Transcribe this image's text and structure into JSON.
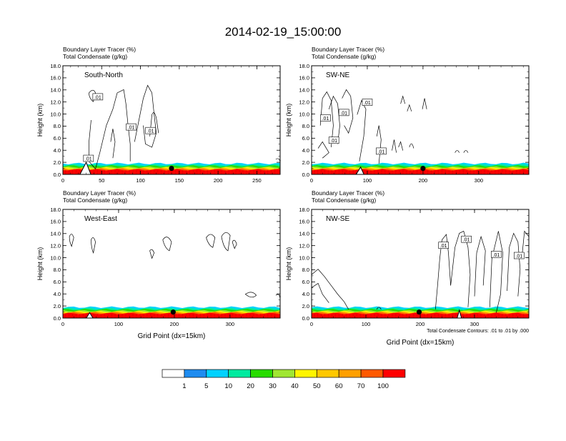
{
  "title": "2014-02-19_15:00:00",
  "chart_data": [
    {
      "type": "contour",
      "panel_label": "South-North",
      "header_lines": [
        "Boundary Layer Tracer   (%)",
        "Total Condensate   (g/kg)"
      ],
      "ylabel": "Height (km)",
      "xlabel": "",
      "ylim": [
        0,
        18
      ],
      "xlim": [
        0,
        280
      ],
      "y_ticks": [
        "0.0",
        "2.0",
        "4.0",
        "6.0",
        "8.0",
        "10.0",
        "12.0",
        "14.0",
        "16.0",
        "18.0"
      ],
      "x_ticks": [
        {
          "v": 0,
          "label": "0"
        },
        {
          "v": 50,
          "label": "50"
        },
        {
          "v": 100,
          "label": "100"
        },
        {
          "v": 150,
          "label": "150"
        },
        {
          "v": 200,
          "label": "200"
        },
        {
          "v": 250,
          "label": "250"
        }
      ],
      "contour_labels": [
        {
          "x": 45,
          "y": 12.8,
          "text": ".01"
        },
        {
          "x": 88,
          "y": 7.8,
          "text": ".01"
        },
        {
          "x": 113,
          "y": 7.2,
          "text": ".01"
        },
        {
          "x": 33,
          "y": 2.6,
          "text": ".01"
        }
      ],
      "marker": {
        "x": 140,
        "y": 1.0
      },
      "mountain": {
        "x_start": 22,
        "x_peak": 30,
        "x_end": 36,
        "peak": 2.0
      }
    },
    {
      "type": "contour",
      "panel_label": "SW-NE",
      "header_lines": [
        "Boundary Layer Tracer   (%)",
        "Total Condensate   (g/kg)"
      ],
      "ylabel": "Height (km)",
      "xlabel": "",
      "ylim": [
        0,
        18
      ],
      "xlim": [
        0,
        390
      ],
      "y_ticks": [
        "0.0",
        "2.0",
        "4.0",
        "6.0",
        "8.0",
        "10.0",
        "12.0",
        "14.0",
        "16.0",
        "18.0"
      ],
      "x_ticks": [
        {
          "v": 0,
          "label": "0"
        },
        {
          "v": 100,
          "label": "100"
        },
        {
          "v": 200,
          "label": "200"
        },
        {
          "v": 300,
          "label": "300"
        }
      ],
      "contour_labels": [
        {
          "x": 58,
          "y": 10.2,
          "text": ".01"
        },
        {
          "x": 25,
          "y": 9.3,
          "text": ".01"
        },
        {
          "x": 100,
          "y": 11.9,
          "text": ".01"
        },
        {
          "x": 40,
          "y": 5.6,
          "text": ".01"
        },
        {
          "x": 125,
          "y": 3.8,
          "text": ".01"
        }
      ],
      "marker": {
        "x": 200,
        "y": 1.0
      },
      "mountain": {
        "x_start": 80,
        "x_peak": 88,
        "x_end": 94,
        "peak": 1.2
      }
    },
    {
      "type": "contour",
      "panel_label": "West-East",
      "header_lines": [
        "Boundary Layer Tracer   (%)",
        "Total Condensate   (g/kg)"
      ],
      "ylabel": "Height (km)",
      "xlabel": "Grid Point (dx=15km)",
      "ylim": [
        0,
        18
      ],
      "xlim": [
        0,
        390
      ],
      "y_ticks": [
        "0.0",
        "2.0",
        "4.0",
        "6.0",
        "8.0",
        "10.0",
        "12.0",
        "14.0",
        "16.0",
        "18.0"
      ],
      "x_ticks": [
        {
          "v": 0,
          "label": "0"
        },
        {
          "v": 100,
          "label": "100"
        },
        {
          "v": 200,
          "label": "200"
        },
        {
          "v": 300,
          "label": "300"
        }
      ],
      "contour_labels": [],
      "marker": {
        "x": 198,
        "y": 1.0
      },
      "mountain": {
        "x_start": 42,
        "x_peak": 48,
        "x_end": 54,
        "peak": 0.9
      }
    },
    {
      "type": "contour",
      "panel_label": "NW-SE",
      "header_lines": [
        "Boundary Layer Tracer   (%)",
        "Total Condensate   (g/kg)"
      ],
      "ylabel": "Height (km)",
      "xlabel": "Grid Point (dx=15km)",
      "ylim": [
        0,
        18
      ],
      "xlim": [
        0,
        400
      ],
      "y_ticks": [
        "0.0",
        "2.0",
        "4.0",
        "6.0",
        "8.0",
        "10.0",
        "12.0",
        "14.0",
        "16.0",
        "18.0"
      ],
      "x_ticks": [
        {
          "v": 0,
          "label": "0"
        },
        {
          "v": 100,
          "label": "100"
        },
        {
          "v": 200,
          "label": "200"
        },
        {
          "v": 300,
          "label": "300"
        }
      ],
      "contour_labels": [
        {
          "x": 243,
          "y": 12.0,
          "text": ".01"
        },
        {
          "x": 285,
          "y": 13.0,
          "text": ".01"
        },
        {
          "x": 340,
          "y": 10.5,
          "text": ".01"
        },
        {
          "x": 382,
          "y": 10.3,
          "text": ".01"
        }
      ],
      "marker": {
        "x": 198,
        "y": 1.0
      },
      "mountain": {
        "x_start": 268,
        "x_peak": 272,
        "x_end": 276,
        "peak": 1.3
      },
      "footnote": "Total Condensate Contours: .01 to .01 by .000"
    }
  ],
  "legend": {
    "colors": [
      "#ffffff",
      "#1e8cf0",
      "#00d2ff",
      "#00eba0",
      "#28dc00",
      "#a0e632",
      "#fff500",
      "#ffc800",
      "#ffa000",
      "#ff5a00",
      "#ff0000"
    ],
    "labels": [
      "1",
      "5",
      "10",
      "20",
      "30",
      "40",
      "50",
      "60",
      "70",
      "100"
    ]
  }
}
